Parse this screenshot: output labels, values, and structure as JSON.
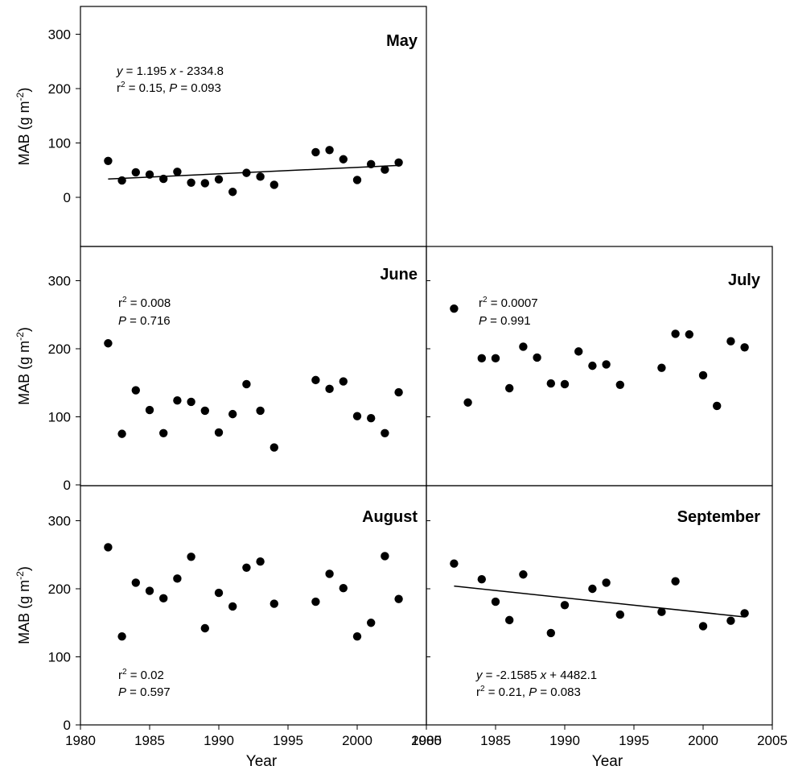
{
  "chart_data": [
    {
      "type": "scatter",
      "title": "May",
      "ylabel": "MAB (g m-2)",
      "xlabel": "",
      "xlim": [
        1980,
        2005
      ],
      "ylim": [
        -80,
        350
      ],
      "yticks": [
        0,
        100,
        200,
        300
      ],
      "xticks": [],
      "x": [
        1982,
        1983,
        1984,
        1985,
        1986,
        1987,
        1988,
        1989,
        1990,
        1991,
        1992,
        1993,
        1994,
        1997,
        1998,
        1999,
        2000,
        2001,
        2002,
        2003
      ],
      "y": [
        67,
        31,
        46,
        42,
        34,
        47,
        27,
        26,
        33,
        10,
        45,
        38,
        23,
        83,
        87,
        70,
        32,
        61,
        51,
        64
      ],
      "fit": {
        "slope": 1.195,
        "intercept": -2334.8
      },
      "annotation": {
        "eq_y": "y",
        "eq_rest": " = 1.195 ",
        "eq_x": "x",
        "eq_tail": " - 2334.8",
        "r": "r",
        "r_exp": "2",
        "r_val": " = 0.15, ",
        "p": "P",
        "p_val": " = 0.093"
      }
    },
    {
      "type": "scatter",
      "title": "June",
      "ylabel": "MAB (g m-2)",
      "xlabel": "",
      "xlim": [
        1980,
        2005
      ],
      "ylim": [
        0,
        350
      ],
      "yticks": [
        0,
        100,
        200,
        300
      ],
      "xticks": [],
      "x": [
        1982,
        1983,
        1984,
        1985,
        1986,
        1987,
        1988,
        1989,
        1990,
        1991,
        1992,
        1993,
        1994,
        1997,
        1998,
        1999,
        2000,
        2001,
        2002,
        2003
      ],
      "y": [
        208,
        75,
        139,
        110,
        76,
        124,
        122,
        109,
        77,
        104,
        148,
        109,
        55,
        154,
        141,
        152,
        101,
        98,
        76,
        136
      ],
      "annotation": {
        "r": "r",
        "r_exp": "2",
        "r_val": " = 0.008",
        "p": "P",
        "p_val": " = 0.716"
      }
    },
    {
      "type": "scatter",
      "title": "July",
      "ylabel": "",
      "xlabel": "",
      "xlim": [
        1980,
        2005
      ],
      "ylim": [
        0,
        350
      ],
      "yticks": [],
      "xticks": [],
      "x": [
        1982,
        1983,
        1984,
        1985,
        1986,
        1987,
        1988,
        1989,
        1990,
        1991,
        1992,
        1993,
        1994,
        1997,
        1998,
        1999,
        2000,
        2001,
        2002,
        2003
      ],
      "y": [
        259,
        121,
        186,
        186,
        142,
        203,
        187,
        149,
        148,
        196,
        175,
        177,
        147,
        172,
        222,
        221,
        161,
        116,
        211,
        202
      ],
      "annotation": {
        "r": "r",
        "r_exp": "2",
        "r_val": " = 0.0007",
        "p": "P",
        "p_val": " = 0.991"
      }
    },
    {
      "type": "scatter",
      "title": "August",
      "ylabel": "MAB (g m-2)",
      "xlabel": "Year",
      "xlim": [
        1980,
        2005
      ],
      "ylim": [
        0,
        350
      ],
      "yticks": [
        0,
        100,
        200,
        300
      ],
      "xticks": [
        1980,
        1985,
        1990,
        1995,
        2000,
        2005
      ],
      "x": [
        1982,
        1983,
        1984,
        1985,
        1986,
        1987,
        1988,
        1989,
        1990,
        1991,
        1992,
        1993,
        1994,
        1997,
        1998,
        1999,
        2000,
        2001,
        2002,
        2003
      ],
      "y": [
        261,
        130,
        209,
        197,
        186,
        215,
        247,
        142,
        194,
        174,
        231,
        240,
        178,
        181,
        222,
        201,
        130,
        150,
        248,
        185
      ],
      "annotation": {
        "r": "r",
        "r_exp": "2",
        "r_val": " = 0.02",
        "p": "P",
        "p_val": " = 0.597"
      }
    },
    {
      "type": "scatter",
      "title": "September",
      "ylabel": "",
      "xlabel": "Year",
      "xlim": [
        1980,
        2005
      ],
      "ylim": [
        0,
        350
      ],
      "yticks": [],
      "xticks": [
        1980,
        1985,
        1990,
        1995,
        2000,
        2005
      ],
      "x": [
        1982,
        1984,
        1985,
        1986,
        1987,
        1989,
        1990,
        1992,
        1993,
        1994,
        1997,
        1998,
        2000,
        2002,
        2003
      ],
      "y": [
        237,
        214,
        181,
        154,
        221,
        135,
        176,
        200,
        209,
        162,
        166,
        211,
        145,
        153,
        164
      ],
      "fit": {
        "slope": -2.1585,
        "intercept": 4482.1
      },
      "annotation": {
        "eq_y": "y",
        "eq_rest": " = -2.1585 ",
        "eq_x": "x",
        "eq_tail": " + 4482.1",
        "r": "r",
        "r_exp": "2",
        "r_val": " = 0.21, ",
        "p": "P",
        "p_val": " = 0.083"
      }
    }
  ],
  "ylabel_main": "MAB (g m",
  "ylabel_exp": "-2",
  "ylabel_close": ")"
}
